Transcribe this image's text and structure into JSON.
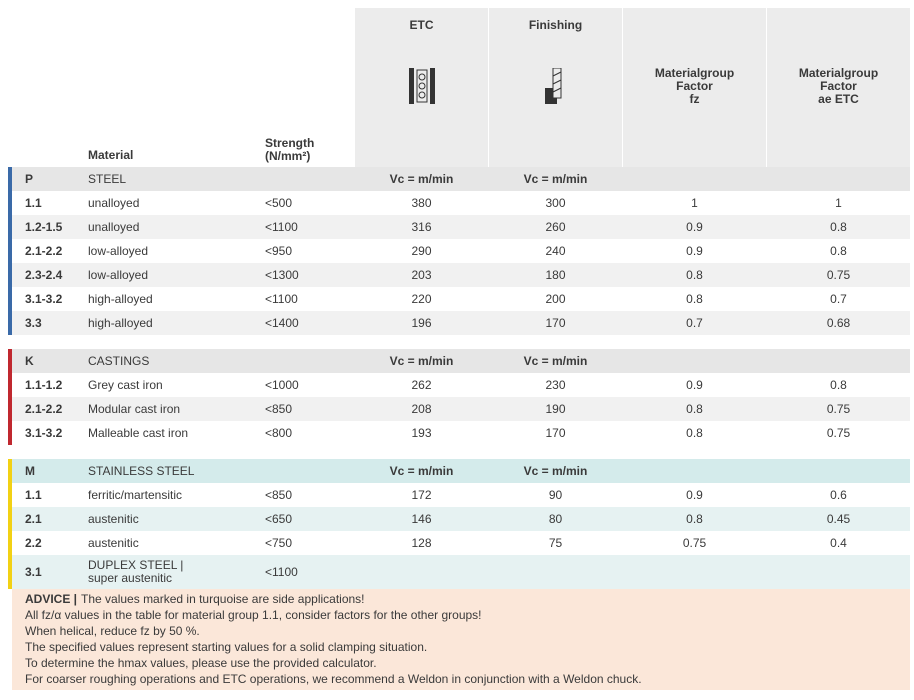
{
  "header": {
    "material": "Material",
    "strength": [
      "Strength",
      "(N/mm²)"
    ],
    "etc": "ETC",
    "finishing": "Finishing",
    "fz": [
      "Materialgroup",
      "Factor",
      "fz"
    ],
    "ae": [
      "Materialgroup",
      "Factor",
      "ae ETC"
    ]
  },
  "groups": [
    {
      "code": "P",
      "name": "STEEL",
      "etc": "Vc = m/min",
      "finishing": "Vc = m/min",
      "rows": [
        {
          "code": "1.1",
          "material": "unalloyed",
          "strength": "<500",
          "etc": 380,
          "finishing": 300,
          "fz": 1,
          "ae": 1
        },
        {
          "code": "1.2-1.5",
          "material": "unalloyed",
          "strength": "<1100",
          "etc": 316,
          "finishing": 260,
          "fz": 0.9,
          "ae": 0.8
        },
        {
          "code": "2.1-2.2",
          "material": "low-alloyed",
          "strength": "<950",
          "etc": 290,
          "finishing": 240,
          "fz": 0.9,
          "ae": 0.8
        },
        {
          "code": "2.3-2.4",
          "material": "low-alloyed",
          "strength": "<1300",
          "etc": 203,
          "finishing": 180,
          "fz": 0.8,
          "ae": 0.75
        },
        {
          "code": "3.1-3.2",
          "material": "high-alloyed",
          "strength": "<1100",
          "etc": 220,
          "finishing": 200,
          "fz": 0.8,
          "ae": 0.7
        },
        {
          "code": "3.3",
          "material": "high-alloyed",
          "strength": "<1400",
          "etc": 196,
          "finishing": 170,
          "fz": 0.7,
          "ae": 0.68
        }
      ]
    },
    {
      "code": "K",
      "name": "CASTINGS",
      "etc": "Vc = m/min",
      "finishing": "Vc = m/min",
      "rows": [
        {
          "code": "1.1-1.2",
          "material": "Grey cast iron",
          "strength": "<1000",
          "etc": 262,
          "finishing": 230,
          "fz": 0.9,
          "ae": 0.8
        },
        {
          "code": "2.1-2.2",
          "material": "Modular cast iron",
          "strength": "<850",
          "etc": 208,
          "finishing": 190,
          "fz": 0.8,
          "ae": 0.75
        },
        {
          "code": "3.1-3.2",
          "material": "Malleable cast iron",
          "strength": "<800",
          "etc": 193,
          "finishing": 170,
          "fz": 0.8,
          "ae": 0.75
        }
      ]
    },
    {
      "code": "M",
      "name": "STAINLESS STEEL",
      "etc": "Vc = m/min",
      "finishing": "Vc = m/min",
      "rows": [
        {
          "code": "1.1",
          "material": "ferritic/martensitic",
          "strength": "<850",
          "etc": 172,
          "finishing": 90,
          "fz": 0.9,
          "ae": 0.6
        },
        {
          "code": "2.1",
          "material": "austenitic",
          "strength": "<650",
          "etc": 146,
          "finishing": 80,
          "fz": 0.8,
          "ae": 0.45
        },
        {
          "code": "2.2",
          "material": "austenitic",
          "strength": "<750",
          "etc": 128,
          "finishing": 75,
          "fz": 0.75,
          "ae": 0.4
        },
        {
          "code": "3.1",
          "material": [
            "DUPLEX STEEL |",
            "super austenitic"
          ],
          "strength": "<1100"
        }
      ]
    }
  ],
  "advice": {
    "label": "ADVICE |",
    "lines": [
      "The values marked in turquoise are side applications!",
      "All fz/α values in the table for material group 1.1, consider factors for the other groups!",
      "When helical, reduce fz by 50 %.",
      "The specified values represent starting values for a solid clamping situation.",
      "To determine the hmax values, please use the provided calculator.",
      "For coarser roughing operations and ETC operations, we recommend a Weldon in conjunction with a Weldon chuck."
    ]
  }
}
